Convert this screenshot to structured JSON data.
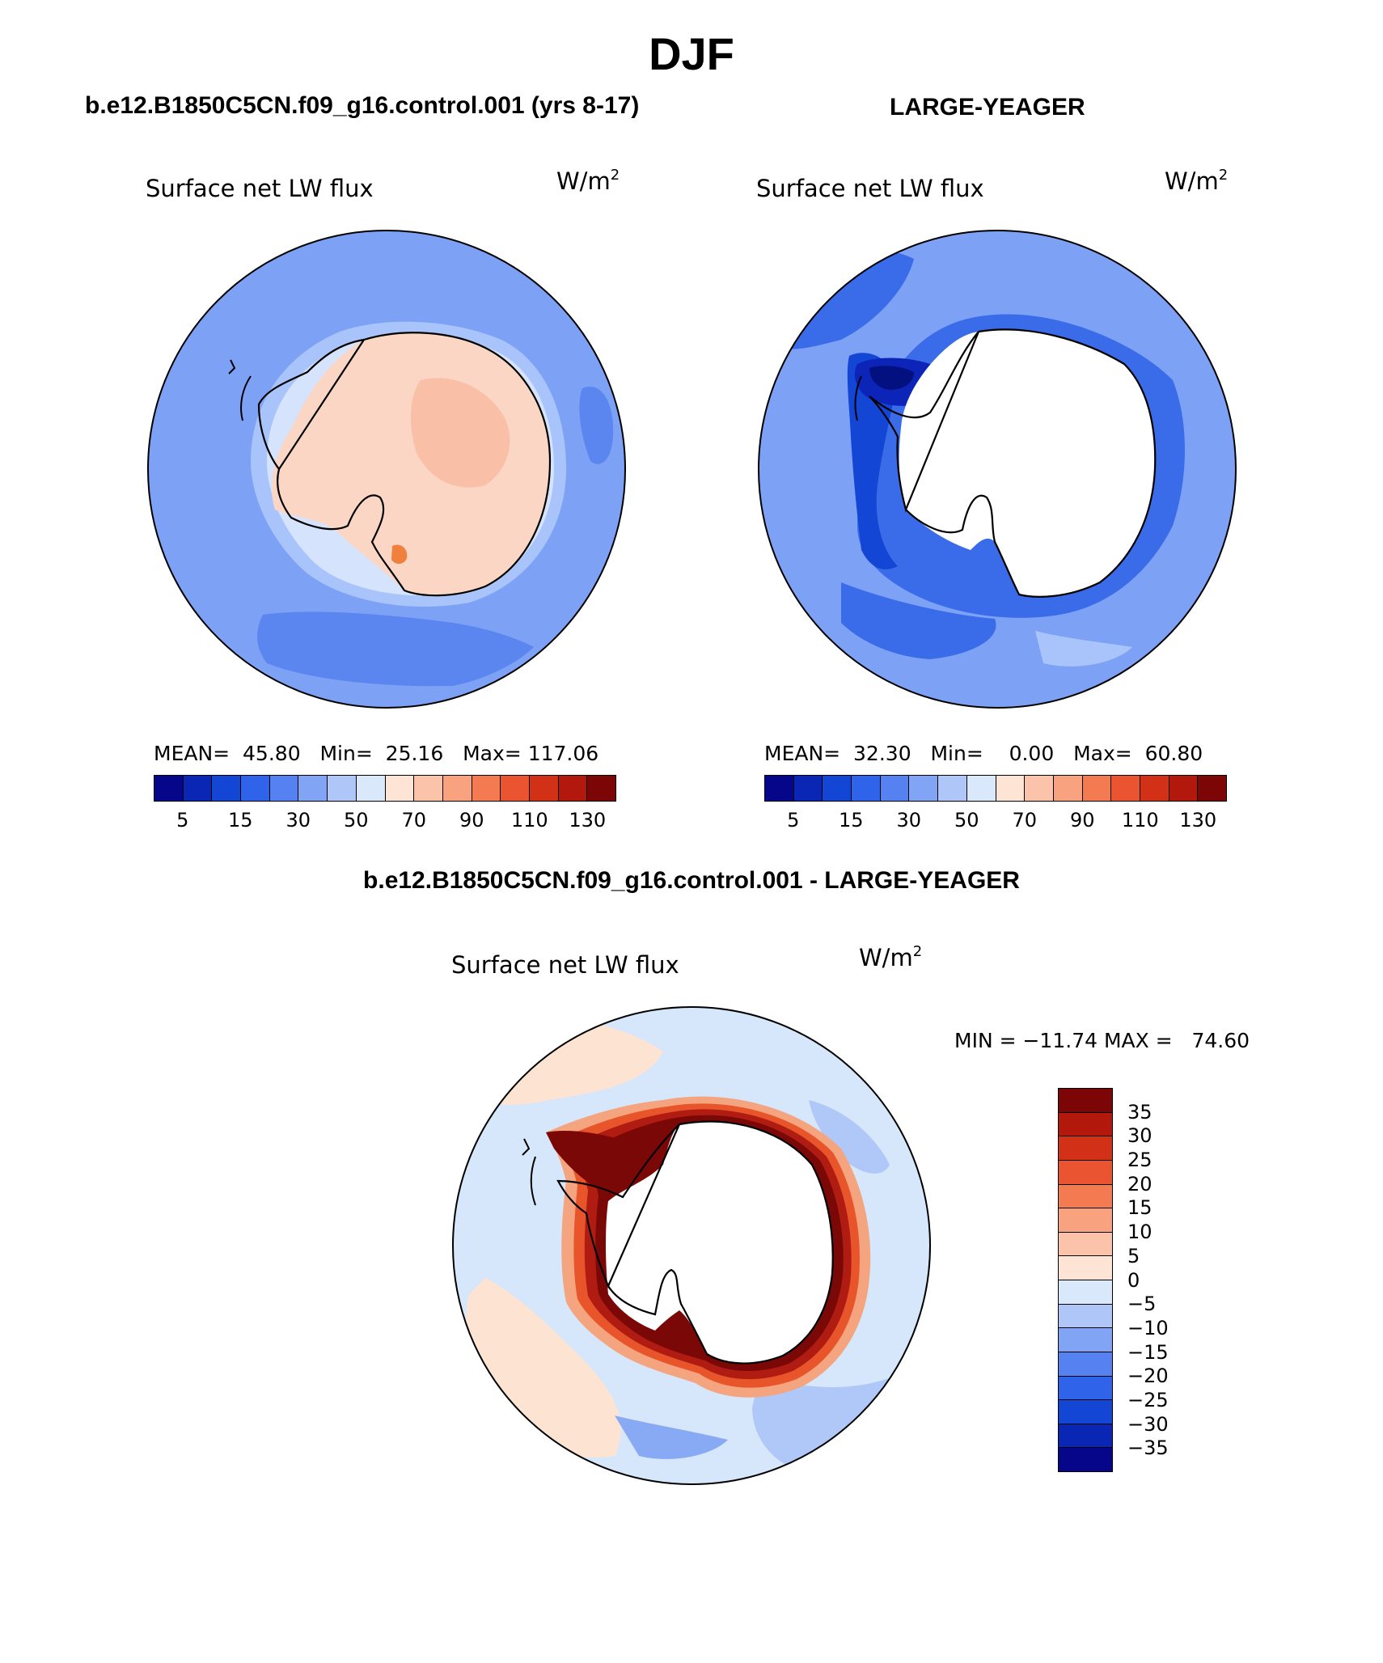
{
  "title": "DJF",
  "panels": [
    {
      "id": "model",
      "header": "b.e12.B1850C5CN.f09_g16.control.001 (yrs 8-17)",
      "variable": "Surface net LW flux",
      "units_base": "W/m",
      "units_exp": "2",
      "mean_label": "MEAN=",
      "mean": "45.80",
      "min_label": "Min=",
      "min": "25.16",
      "max_label": "Max=",
      "max": "117.06",
      "colorbar_ticks": [
        "5",
        "15",
        "30",
        "50",
        "70",
        "90",
        "110",
        "130"
      ],
      "colors": {
        "ocean": "#7da2f5",
        "ocean_dark": "#5b86ef",
        "shelf": "#a9c4fa",
        "coast": "#d5e4fc",
        "ice": "#fbd6c4",
        "ice_warm": "#f9bfa7",
        "hot": "#f0803e"
      }
    },
    {
      "id": "obs",
      "header": "LARGE-YEAGER",
      "variable": "Surface net LW flux",
      "units_base": "W/m",
      "units_exp": "2",
      "mean_label": "MEAN=",
      "mean": "32.30",
      "min_label": "Min=",
      "min": "0.00",
      "max_label": "Max=",
      "max": "60.80",
      "colorbar_ticks": [
        "5",
        "15",
        "30",
        "50",
        "70",
        "90",
        "110",
        "130"
      ],
      "colors": {
        "ocean": "#7da2f5",
        "ocean_dark": "#3a6cea",
        "deep": "#0d24b8",
        "darkest": "#03107f",
        "light": "#a9c4fa",
        "land": "#ffffff"
      }
    }
  ],
  "diff": {
    "header": "b.e12.B1850C5CN.f09_g16.control.001 - LARGE-YEAGER",
    "variable": "Surface net LW flux",
    "units_base": "W/m",
    "units_exp": "2",
    "minmax": "MIN = −11.74 MAX =   74.60",
    "colorbar_ticks": [
      "35",
      "30",
      "25",
      "20",
      "15",
      "10",
      "5",
      "0",
      "−5",
      "−10",
      "−15",
      "−20",
      "−25",
      "−30",
      "−35"
    ],
    "colors": {
      "ocean": "#d6e6fb",
      "pos": "#fde3d2",
      "neg": "#b0c8f8",
      "neg2": "#88aaf4",
      "rim1": "#f4a47e",
      "rim2": "#e8552b",
      "rim3": "#b01c12",
      "rim4": "#7a0807",
      "land": "#ffffff"
    }
  },
  "colorbar_colors": [
    "#05068a",
    "#0a26b5",
    "#1446d6",
    "#2f63ea",
    "#5582f0",
    "#82a4f4",
    "#afc7f8",
    "#d9e8fb",
    "#fde4d5",
    "#fbc4aa",
    "#f8a27f",
    "#f47a51",
    "#ea5430",
    "#d33018",
    "#b3180c",
    "#7b0605"
  ],
  "diff_colorbar_colors": [
    "#7b0605",
    "#b3180c",
    "#d33018",
    "#ea5430",
    "#f47a51",
    "#f8a27f",
    "#fbc4aa",
    "#fde4d5",
    "#d9e8fb",
    "#afc7f8",
    "#82a4f4",
    "#5582f0",
    "#2f63ea",
    "#1446d6",
    "#0a26b5",
    "#05068a"
  ]
}
